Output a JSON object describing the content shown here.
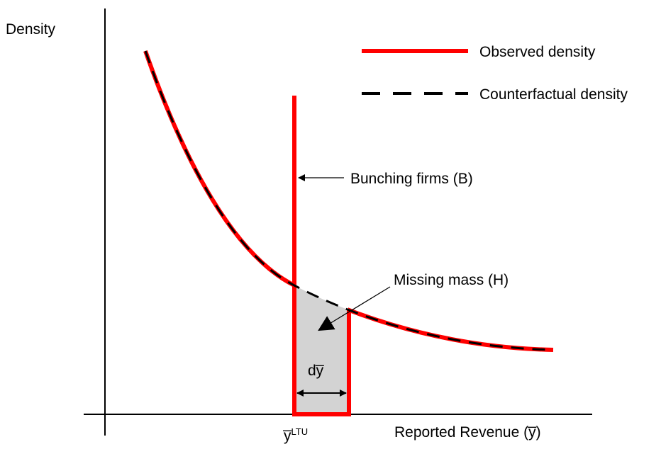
{
  "labels": {
    "y_axis": "Density",
    "x_axis": "Reported Revenue (y̅)",
    "threshold_base": "y̅",
    "threshold_sup": "LTU",
    "bunching": "Bunching firms (B)",
    "missing": "Missing mass (H)",
    "width": "dy̅"
  },
  "legend": [
    "Observed density",
    "Counterfactual density"
  ]
}
